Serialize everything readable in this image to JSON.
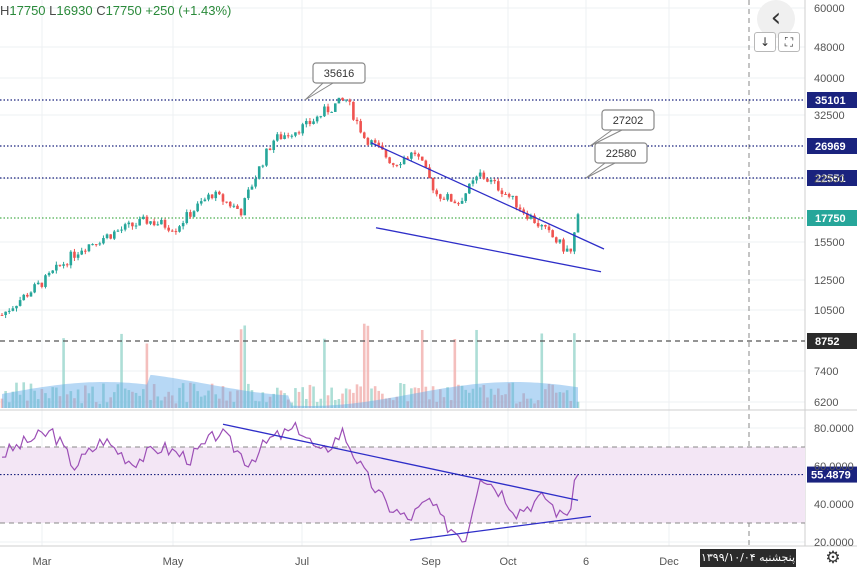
{
  "header": {
    "high_label": "H",
    "high": "17750",
    "low_label": "L",
    "low": "16930",
    "close_label": "C",
    "close": "17750",
    "change": "+250 (+1.43%)"
  },
  "toolbar": {
    "down_icon": "down-arrow-icon",
    "fullscreen_icon": "fullscreen-icon",
    "nav_icon": "chevron-left-icon"
  },
  "date_badge": "پنجشنبه ۱۳۹۹/۱۰/۰۴",
  "settings_icon": "gear-icon",
  "colors": {
    "up": "#26a69a",
    "down": "#ef5350",
    "level_line": "#1a237e",
    "last_price": "#4caf50",
    "trend": "#2e2ec8",
    "rsi": "#9c4fb6",
    "volume_ma": "#5fa8e8"
  },
  "chart_data": [
    {
      "type": "candlestick",
      "price_axis": {
        "ylim": [
          5800,
          61000
        ],
        "ticks": [
          60000,
          48000,
          40000,
          32500,
          22500,
          15500,
          12500,
          10500,
          7400,
          6200
        ],
        "tick_labels": [
          "60000",
          "48000",
          "40000",
          "32500",
          "22500",
          "15500",
          "12500",
          "10500",
          "7400",
          "6200"
        ],
        "scale": "log"
      },
      "x_axis": {
        "tick_labels": [
          "Mar",
          "May",
          "Jul",
          "Sep",
          "Oct",
          "6",
          "Dec"
        ]
      },
      "horizontal_levels": [
        {
          "value": 35101,
          "label": "35101",
          "style": "dotted"
        },
        {
          "value": 26969,
          "label": "26969",
          "style": "dotted"
        },
        {
          "value": 22551,
          "label": "22551",
          "style": "dotted"
        },
        {
          "value": 8752,
          "label": "8752",
          "style": "dashed"
        }
      ],
      "last_price": {
        "value": 17750,
        "label": "17750"
      },
      "callouts": [
        {
          "label": "35616",
          "value": 35616
        },
        {
          "label": "27202",
          "value": 27202
        },
        {
          "label": "22580",
          "value": 22580
        }
      ],
      "trend": "falling wedge (Jul high 35616 to Oct low near 14500), breakout upward",
      "grid": true
    },
    {
      "type": "line",
      "name": "RSI",
      "ylim": [
        18,
        86
      ],
      "ticks": [
        80,
        60,
        40,
        20
      ],
      "tick_labels": [
        "80.0000",
        "60.0000",
        "40.0000",
        "20.0000"
      ],
      "bands": [
        70,
        30,
        55.4879
      ],
      "current": {
        "value": 55.4879,
        "label": "55.4879"
      },
      "grid": true
    }
  ]
}
